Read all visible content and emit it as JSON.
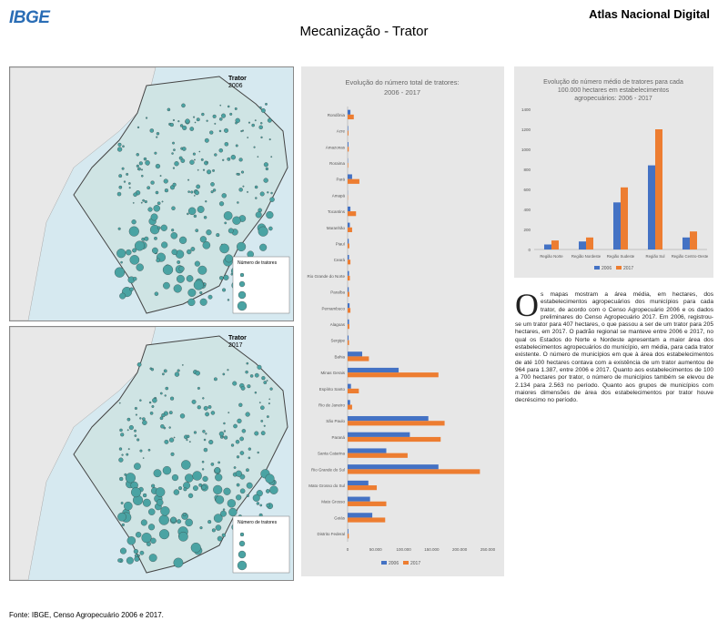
{
  "header": {
    "logo": "IBGE",
    "atlas": "Atlas Nacional Digital",
    "title": "Mecanização - Trator"
  },
  "maps": [
    {
      "title": "Trator",
      "year": "2006",
      "legend_title": "Número de tratores"
    },
    {
      "title": "Trator",
      "year": "2017",
      "legend_title": "Número de tratores"
    }
  ],
  "text": {
    "dropcap": "O",
    "body": "s mapas mostram a área média, em hectares, dos estabelecimentos agropecuários dos municípios para cada trator, de acordo com o Censo Agropecuário 2006 e os dados preliminares do Censo Agropecuário 2017. Em 2006, registrou-se um trator para 407 hectares, o que passou a ser de um trator para 205 hectares, em 2017. O padrão regional se manteve entre 2006 e 2017, no qual os Estados do Norte e Nordeste apresentam a maior área dos estabelecimentos agropecuários do município, em média, para cada trator existente. O número de municípios em que à área dos estabelecimentos de até 100 hectares contava com a existência de um trator aumentou de 964 para 1.387, entre 2006 e 2017. Quanto aos estabelecimentos de 100 a 700 hectares por trator, o número de municípios também se elevou de 2.134 para 2.563 no período. Quanto aos grupos de municípios com maiores dimensões de área dos estabelecimentos por trator houve decréscimo no período."
  },
  "footer": {
    "source": "Fonte: IBGE, Censo Agropecuário 2006 e 2017."
  },
  "colors": {
    "s2006": "#4472c4",
    "s2017": "#ed7d31",
    "map_marker": "#4aa3a3"
  },
  "chart_data": [
    {
      "type": "bar",
      "orientation": "horizontal",
      "title": "Evolução do número total de tratores: 2006 - 2017",
      "categories": [
        "Rondônia",
        "Acre",
        "Amazonas",
        "Roraima",
        "Pará",
        "Amapá",
        "Tocantins",
        "Maranhão",
        "Piauí",
        "Ceará",
        "Rio Grande do Norte",
        "Paraíba",
        "Pernambuco",
        "Alagoas",
        "Sergipe",
        "Bahia",
        "Minas Gerais",
        "Espírito Santo",
        "Rio de Janeiro",
        "São Paulo",
        "Paraná",
        "Santa Catarina",
        "Rio Grande do Sul",
        "Mato Grosso do Sul",
        "Mato Grosso",
        "Goiás",
        "Distrito Federal"
      ],
      "series": [
        {
          "name": "2006",
          "values": [
            5000,
            1000,
            1500,
            600,
            8000,
            300,
            5000,
            4000,
            2000,
            2500,
            2500,
            2000,
            3500,
            2500,
            1700,
            26000,
            91000,
            6000,
            4500,
            144000,
            111000,
            69000,
            162000,
            37000,
            40000,
            44000,
            1300
          ]
        },
        {
          "name": "2017",
          "values": [
            11000,
            1500,
            2000,
            1000,
            21000,
            500,
            15000,
            8000,
            3000,
            5000,
            4000,
            3000,
            5000,
            3000,
            2500,
            38000,
            162000,
            20000,
            8000,
            173000,
            166000,
            107000,
            236000,
            52000,
            69000,
            67000,
            2000
          ]
        }
      ],
      "xlim": [
        0,
        250000
      ],
      "xticks": [
        "0",
        "50.000",
        "100.000",
        "150.000",
        "200.000",
        "250.000"
      ]
    },
    {
      "type": "bar",
      "title": "Evolução do número médio de tratores para cada 100.000 hectares em estabelecimentos agropecuários: 2006 - 2017",
      "categories": [
        "Região Norte",
        "Região Nordeste",
        "Região Sudeste",
        "Região Sul",
        "Região Centro-Oeste"
      ],
      "series": [
        {
          "name": "2006",
          "values": [
            50,
            80,
            470,
            840,
            120
          ]
        },
        {
          "name": "2017",
          "values": [
            90,
            120,
            620,
            1200,
            180
          ]
        }
      ],
      "ylim": [
        0,
        1400
      ],
      "yticks": [
        "0",
        "200",
        "400",
        "600",
        "800",
        "1000",
        "1200",
        "1400"
      ]
    }
  ]
}
